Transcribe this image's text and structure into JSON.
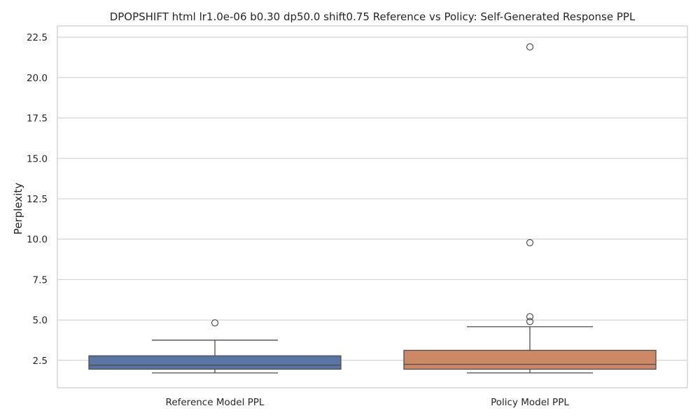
{
  "chart_data": {
    "type": "box",
    "title": "DPOPSHIFT html lr1.0e-06 b0.30 dp50.0 shift0.75 Reference vs Policy: Self-Generated Response PPL",
    "xlabel": "",
    "ylabel": "Perplexity",
    "ylim": [
      0.8,
      23.2
    ],
    "yticks": [
      "2.5",
      "5.0",
      "7.5",
      "10.0",
      "12.5",
      "15.0",
      "17.5",
      "20.0",
      "22.5"
    ],
    "grid": true,
    "categories": [
      "Reference Model PPL",
      "Policy Model PPL"
    ],
    "boxes": [
      {
        "category": "Reference Model PPL",
        "whisker_low": 1.72,
        "q1": 1.95,
        "median": 2.2,
        "q3": 2.78,
        "whisker_high": 3.75,
        "outliers": [
          4.82
        ],
        "color": "#5875a4"
      },
      {
        "category": "Policy Model PPL",
        "whisker_low": 1.72,
        "q1": 1.95,
        "median": 2.25,
        "q3": 3.12,
        "whisker_high": 4.58,
        "outliers": [
          4.9,
          5.2,
          9.78,
          21.9
        ],
        "color": "#cc8963"
      }
    ]
  }
}
